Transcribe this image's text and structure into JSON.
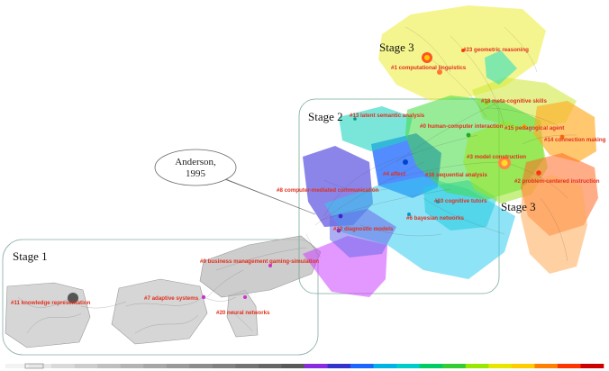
{
  "stage_labels": {
    "stage1": "Stage 1",
    "stage2": "Stage 2",
    "stage3_top": "Stage 3",
    "stage3_right": "Stage 3"
  },
  "callout": {
    "line1": "Anderson,",
    "line2": "1995"
  },
  "clusters": {
    "c11": "#11 knowledge representation",
    "c7": "#7 adaptive systems",
    "c20": "#20 neural networks",
    "c9": "#9 business management gaming-simulation",
    "c8": "#8 computer-mediated communication",
    "c12": "#12 diagnostic models",
    "c6": "#6 bayesian networks",
    "c10": "#10 cognitive tutors",
    "c16": "#16 sequential analysis",
    "c4": "#4 affect",
    "c13": "#13 latent semantic analysis",
    "c0": "#0 human-computer interaction",
    "c3": "#3 model construction",
    "c2": "#2 problem-centered instruction",
    "c15": "#15 pedagogical agent",
    "c14": "#14 connection making",
    "c18": "#18 meta-cognitive skills",
    "c1": "#1 computational linguistics",
    "c23": "#23 geometric reasoning"
  },
  "colors": {
    "timeline": [
      "#f2f2f2",
      "#e6e6e6",
      "#d9d9d9",
      "#cccccc",
      "#bfbfbf",
      "#b3b3b3",
      "#a6a6a6",
      "#999999",
      "#8c8c8c",
      "#808080",
      "#737373",
      "#666666",
      "#595959",
      "#8a2be2",
      "#3333cc",
      "#1a66ff",
      "#00b3e6",
      "#00cccc",
      "#00cc66",
      "#33cc33",
      "#99e600",
      "#e6e600",
      "#ffcc00",
      "#ff8000",
      "#ff3300",
      "#cc0000"
    ],
    "label": "#e0301e"
  }
}
